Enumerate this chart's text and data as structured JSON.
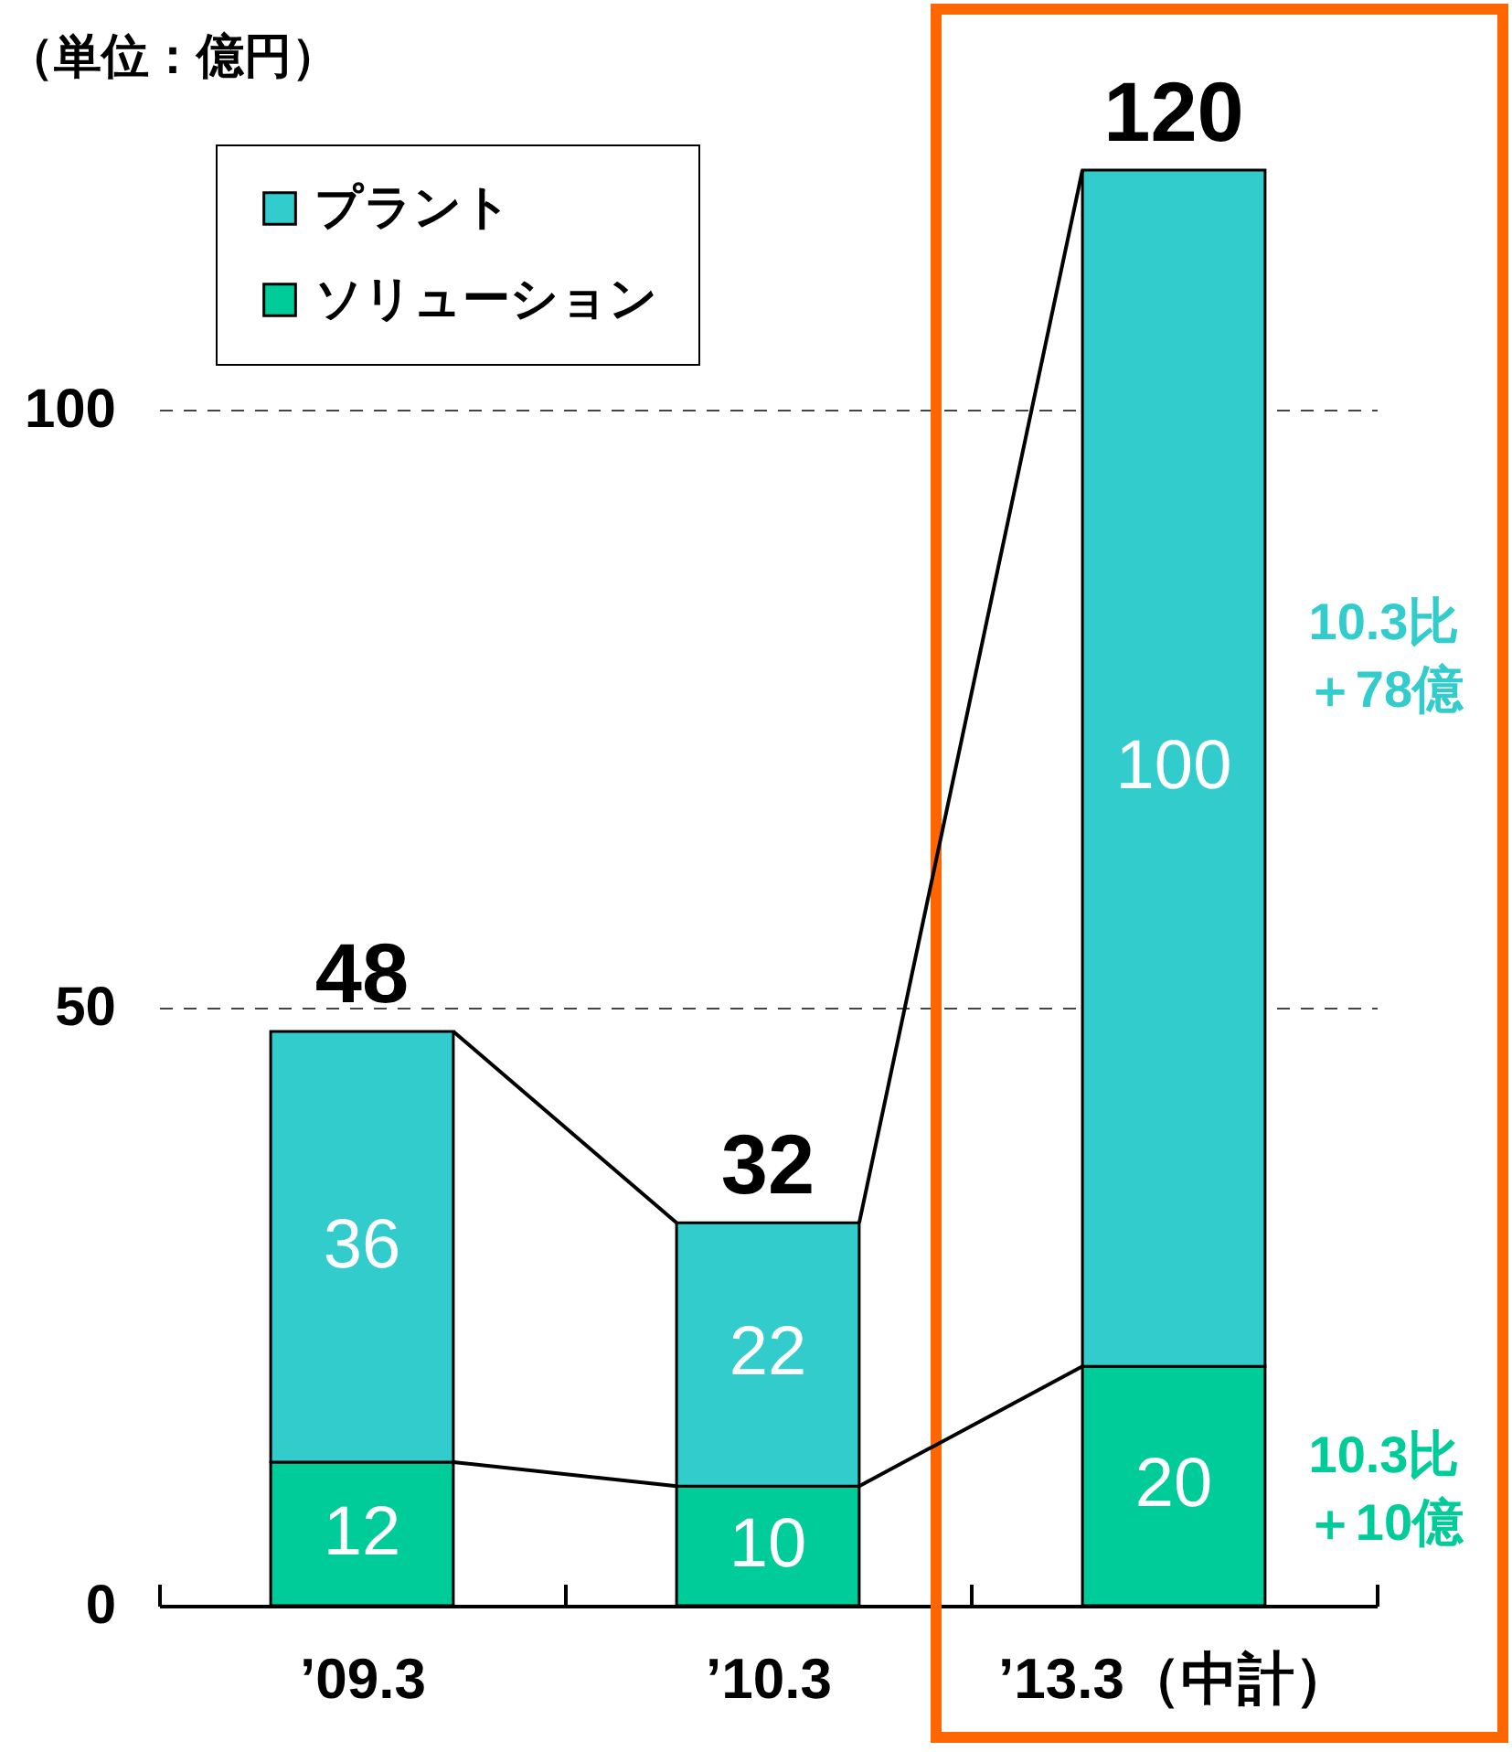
{
  "chart_data": {
    "type": "bar",
    "ylabel": "（単位：億円）",
    "categories": [
      "’09.3",
      "’10.3",
      "’13.3（中計）"
    ],
    "series": [
      {
        "name": "ソリューション",
        "color": "#00cc99",
        "values": [
          12,
          10,
          20
        ]
      },
      {
        "name": "プラント",
        "color": "#33cccc",
        "values": [
          36,
          22,
          100
        ]
      }
    ],
    "stacked": true,
    "ylim": [
      0,
      120
    ],
    "yticks": [
      0,
      50,
      100
    ],
    "grid": "y",
    "legend": "top left",
    "data_labels": true,
    "totals": [
      "48",
      "32",
      "120"
    ],
    "annotations": [
      "10.3比＋78億",
      "10.3比＋10億"
    ]
  }
}
